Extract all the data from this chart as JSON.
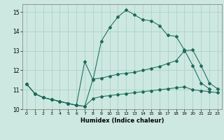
{
  "xlabel": "Humidex (Indice chaleur)",
  "xlim": [
    -0.5,
    23.5
  ],
  "ylim": [
    10,
    15.4
  ],
  "xticks": [
    0,
    1,
    2,
    3,
    4,
    5,
    6,
    7,
    8,
    9,
    10,
    11,
    12,
    13,
    14,
    15,
    16,
    17,
    18,
    19,
    20,
    21,
    22,
    23
  ],
  "yticks": [
    10,
    11,
    12,
    13,
    14,
    15
  ],
  "background_color": "#cde8e0",
  "grid_color": "#a8ccc2",
  "line_color": "#1a6b5a",
  "line1_x": [
    0,
    1,
    2,
    3,
    4,
    5,
    6,
    7,
    8,
    9,
    10,
    11,
    12,
    13,
    14,
    15,
    16,
    17,
    18,
    19,
    20,
    21,
    22,
    23
  ],
  "line1_y": [
    11.3,
    10.8,
    10.6,
    10.5,
    10.4,
    10.3,
    10.2,
    10.15,
    10.55,
    10.65,
    10.7,
    10.75,
    10.8,
    10.85,
    10.9,
    10.95,
    11.0,
    11.05,
    11.1,
    11.15,
    11.0,
    10.95,
    10.9,
    10.85
  ],
  "line2_x": [
    0,
    1,
    2,
    3,
    4,
    5,
    6,
    7,
    8,
    9,
    10,
    11,
    12,
    13,
    14,
    15,
    16,
    17,
    18,
    19,
    20,
    21,
    22
  ],
  "line2_y": [
    11.3,
    10.8,
    10.6,
    10.5,
    10.4,
    10.3,
    10.2,
    12.45,
    11.5,
    13.5,
    14.2,
    14.75,
    15.1,
    14.85,
    14.6,
    14.55,
    14.3,
    13.8,
    13.75,
    13.05,
    12.25,
    11.35,
    11.05
  ],
  "line3_x": [
    0,
    1,
    2,
    3,
    4,
    5,
    6,
    7,
    8,
    9,
    10,
    11,
    12,
    13,
    14,
    15,
    16,
    17,
    18,
    19,
    20,
    21,
    22,
    23
  ],
  "line3_y": [
    11.3,
    10.8,
    10.6,
    10.5,
    10.4,
    10.3,
    10.2,
    10.15,
    11.55,
    11.6,
    11.7,
    11.8,
    11.85,
    11.9,
    12.0,
    12.1,
    12.2,
    12.35,
    12.5,
    13.0,
    13.05,
    12.25,
    11.35,
    11.05
  ]
}
